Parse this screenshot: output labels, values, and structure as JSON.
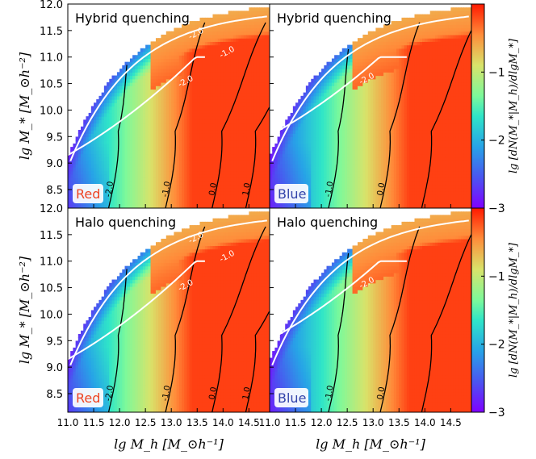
{
  "figure": {
    "xlabel": "lg M_h  [M_⊙h⁻¹]",
    "ylabel": "lg M_*  [M_⊙h⁻²]",
    "colorbar_label": "lg [dN(M_*|M_h)/dlgM_*]"
  },
  "chart_data": [
    {
      "type": "heatmap",
      "title": "Hybrid quenching",
      "tag": "Red",
      "tag_color": "#ee4422",
      "xlim": [
        11.0,
        14.9
      ],
      "ylim": [
        8.15,
        12.0
      ],
      "zlim": [
        -3,
        0
      ],
      "xticks": [
        11.0,
        11.5,
        12.0,
        12.5,
        13.0,
        13.5,
        14.0,
        14.5
      ],
      "yticks": [
        8.5,
        9.0,
        9.5,
        10.0,
        10.5,
        11.0,
        11.5,
        12.0
      ],
      "contour_levels": [
        {
          "level": -2.0,
          "label": "-2.0"
        },
        {
          "level": -1.0,
          "label": "-1.0"
        },
        {
          "level": 0.0,
          "label": "0.0"
        },
        {
          "level": 1.0,
          "label": "1.0"
        }
      ],
      "white_contour": {
        "labels": [
          "-2.0",
          "-1.0",
          "-2.0"
        ]
      }
    },
    {
      "type": "heatmap",
      "title": "Hybrid quenching",
      "tag": "Blue",
      "tag_color": "#3344aa",
      "xlim": [
        11.0,
        14.9
      ],
      "ylim": [
        8.15,
        12.0
      ],
      "zlim": [
        -3,
        0
      ],
      "contour_levels": [
        {
          "level": -1.0,
          "label": "-1.0"
        },
        {
          "level": 0.0,
          "label": "0.0"
        }
      ],
      "white_contour": {
        "labels": [
          "-2.0"
        ]
      }
    },
    {
      "type": "heatmap",
      "title": "Halo quenching",
      "tag": "Red",
      "tag_color": "#ee4422",
      "xlim": [
        11.0,
        14.9
      ],
      "ylim": [
        8.15,
        12.0
      ],
      "zlim": [
        -3,
        0
      ],
      "contour_levels": [
        {
          "level": -2.0,
          "label": "-2.0"
        },
        {
          "level": -1.0,
          "label": "-1.0"
        },
        {
          "level": 0.0,
          "label": "0.0"
        },
        {
          "level": 1.0,
          "label": "1.0"
        }
      ],
      "white_contour": {
        "labels": [
          "-2.0",
          "-1.0",
          "-2.0"
        ]
      }
    },
    {
      "type": "heatmap",
      "title": "Halo quenching",
      "tag": "Blue",
      "tag_color": "#3344aa",
      "xlim": [
        11.0,
        14.9
      ],
      "ylim": [
        8.15,
        12.0
      ],
      "zlim": [
        -3,
        0
      ],
      "contour_levels": [
        {
          "level": -1.0,
          "label": "-1.0"
        },
        {
          "level": 0.0,
          "label": "0.0"
        }
      ],
      "white_contour": {
        "labels": [
          "-2.0"
        ]
      }
    }
  ],
  "colorbars": [
    {
      "ticks": [
        -1,
        -2,
        -3
      ],
      "tick_labels": [
        "−1",
        "−2",
        "−3"
      ]
    },
    {
      "ticks": [
        -1,
        -2,
        -3
      ],
      "tick_labels": [
        "−1",
        "−2",
        "−3"
      ]
    }
  ]
}
